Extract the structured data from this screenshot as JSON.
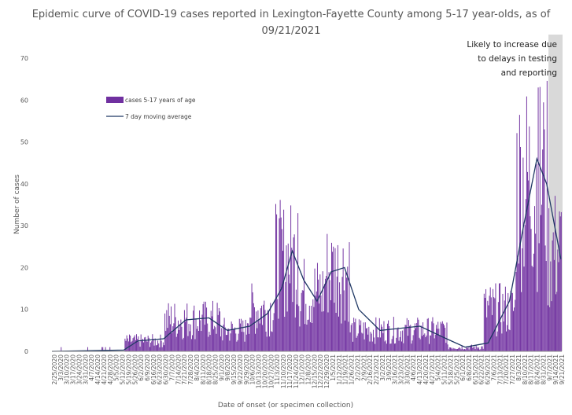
{
  "chart_data": {
    "type": "bar",
    "title": "Epidemic curve of COVID-19 cases reported in Lexington-Fayette County among 5-17 year-olds, as of 09/21/2021",
    "xlabel": "Date of onset (or specimen collection)",
    "ylabel": "Number of cases",
    "ylim": [
      0,
      70
    ],
    "yticks": [
      0,
      10,
      20,
      30,
      40,
      50,
      60,
      70
    ],
    "x_start": "2020-02-25",
    "x_end": "2021-09-21",
    "x_tick_labels": [
      "2/25/2020",
      "3/3/2020",
      "3/10/2020",
      "3/17/2020",
      "3/24/2020",
      "3/31/2020",
      "4/7/2020",
      "4/14/2020",
      "4/21/2020",
      "4/28/2020",
      "5/5/2020",
      "5/12/2020",
      "5/19/2020",
      "5/26/2020",
      "6/2/2020",
      "6/9/2020",
      "6/16/2020",
      "6/23/2020",
      "6/30/2020",
      "7/7/2020",
      "7/14/2020",
      "7/21/2020",
      "7/28/2020",
      "8/4/2020",
      "8/11/2020",
      "8/18/2020",
      "8/25/2020",
      "9/1/2020",
      "9/8/2020",
      "9/15/2020",
      "9/22/2020",
      "9/29/2020",
      "10/6/2020",
      "10/13/2020",
      "10/20/2020",
      "10/27/2020",
      "11/3/2020",
      "11/10/2020",
      "11/17/2020",
      "11/24/2020",
      "12/1/2020",
      "12/8/2020",
      "12/15/2020",
      "12/22/2020",
      "12/29/2020",
      "1/5/2021",
      "1/12/2021",
      "1/19/2021",
      "1/26/2021",
      "2/2/2021",
      "2/9/2021",
      "2/16/2021",
      "2/23/2021",
      "3/2/2021",
      "3/9/2021",
      "3/16/2021",
      "3/23/2021",
      "3/30/2021",
      "4/6/2021",
      "4/13/2021",
      "4/20/2021",
      "4/27/2021",
      "5/4/2021",
      "5/11/2021",
      "5/18/2021",
      "5/25/2021",
      "6/1/2021",
      "6/8/2021",
      "6/15/2021",
      "6/22/2021",
      "6/29/2021",
      "7/6/2021",
      "7/13/2021",
      "7/20/2021",
      "7/27/2021",
      "8/3/2021",
      "8/10/2021",
      "8/17/2021",
      "8/24/2021",
      "8/31/2021",
      "9/7/2021",
      "9/14/2021",
      "9/21/2021"
    ],
    "series": [
      {
        "name": "cases 5-17 years of age",
        "kind": "bar",
        "color": "#7030a0"
      },
      {
        "name": "7 day moving average",
        "kind": "line",
        "color": "#1f3864"
      }
    ],
    "daily_counts_by_segment": [
      {
        "from": "2020-02-25",
        "to": "2020-05-16",
        "level": 0.2
      },
      {
        "from": "2020-05-17",
        "to": "2020-06-30",
        "level": 2.5
      },
      {
        "from": "2020-07-01",
        "to": "2020-09-01",
        "level": 7.5
      },
      {
        "from": "2020-09-02",
        "to": "2020-10-01",
        "level": 5
      },
      {
        "from": "2020-10-02",
        "to": "2020-11-02",
        "level": 10
      },
      {
        "from": "2020-11-03",
        "to": "2020-11-28",
        "level": 22
      },
      {
        "from": "2020-11-29",
        "to": "2020-12-28",
        "level": 14
      },
      {
        "from": "2020-12-29",
        "to": "2021-01-25",
        "level": 19
      },
      {
        "from": "2021-01-26",
        "to": "2021-05-15",
        "level": 5
      },
      {
        "from": "2021-05-16",
        "to": "2021-06-25",
        "level": 1
      },
      {
        "from": "2021-06-26",
        "to": "2021-07-31",
        "level": 10
      },
      {
        "from": "2021-08-01",
        "to": "2021-09-05",
        "level": 40
      },
      {
        "from": "2021-09-06",
        "to": "2021-09-21",
        "level": 24
      }
    ],
    "peaks": [
      {
        "date": "2021-08-26",
        "value": 63
      },
      {
        "date": "2020-11-28",
        "value": 33
      },
      {
        "date": "2021-01-07",
        "value": 25
      },
      {
        "date": "2021-09-02",
        "value": 53
      }
    ],
    "moving_average": [
      {
        "date": "2020-02-25",
        "value": 0
      },
      {
        "date": "2020-05-16",
        "value": 0.3
      },
      {
        "date": "2020-06-01",
        "value": 2.5
      },
      {
        "date": "2020-06-30",
        "value": 3
      },
      {
        "date": "2020-07-25",
        "value": 7.5
      },
      {
        "date": "2020-08-20",
        "value": 8
      },
      {
        "date": "2020-09-10",
        "value": 5
      },
      {
        "date": "2020-10-05",
        "value": 6
      },
      {
        "date": "2020-10-25",
        "value": 9
      },
      {
        "date": "2020-11-10",
        "value": 15
      },
      {
        "date": "2020-11-22",
        "value": 24
      },
      {
        "date": "2020-12-05",
        "value": 17
      },
      {
        "date": "2020-12-20",
        "value": 12
      },
      {
        "date": "2021-01-05",
        "value": 19
      },
      {
        "date": "2021-01-20",
        "value": 20
      },
      {
        "date": "2021-02-05",
        "value": 10
      },
      {
        "date": "2021-03-01",
        "value": 5
      },
      {
        "date": "2021-04-15",
        "value": 6
      },
      {
        "date": "2021-05-15",
        "value": 3
      },
      {
        "date": "2021-06-05",
        "value": 1
      },
      {
        "date": "2021-07-01",
        "value": 2
      },
      {
        "date": "2021-07-25",
        "value": 12
      },
      {
        "date": "2021-08-10",
        "value": 30
      },
      {
        "date": "2021-08-25",
        "value": 46
      },
      {
        "date": "2021-09-05",
        "value": 40
      },
      {
        "date": "2021-09-21",
        "value": 22
      }
    ],
    "shaded_region": {
      "from": "2021-09-07",
      "to": "2021-09-21",
      "color": "#d9d9d9"
    },
    "annotation": "Likely to increase due to delays in testing and reporting",
    "legend_position": "upper-left"
  }
}
